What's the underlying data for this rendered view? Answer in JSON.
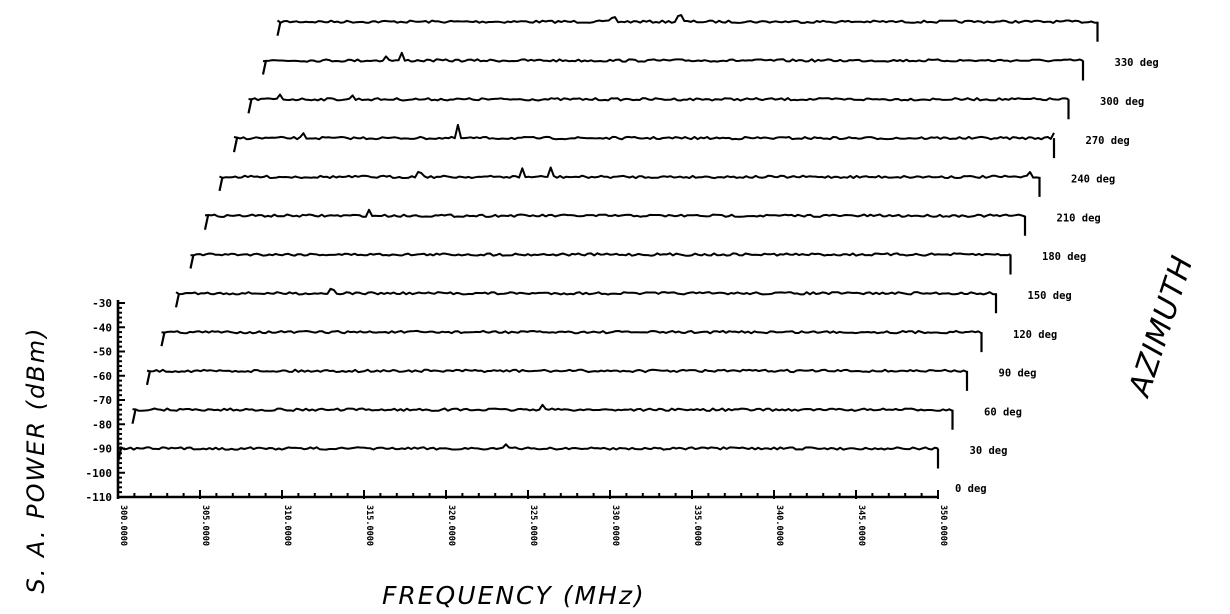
{
  "chart_data": {
    "type": "line",
    "style": "waterfall-3d",
    "xlabel": "FREQUENCY (MHz)",
    "ylabel": "S. A. POWER (dBm)",
    "zlabel": "AZIMUTH",
    "xlim": [
      300,
      350
    ],
    "ylim": [
      -110,
      -30
    ],
    "xticks": [
      "300.0000",
      "305.0000",
      "310.0000",
      "315.0000",
      "320.0000",
      "325.0000",
      "330.0000",
      "335.0000",
      "340.0000",
      "345.0000",
      "350.0000"
    ],
    "yticks": [
      "-30",
      "-40",
      "-50",
      "-60",
      "-70",
      "-80",
      "-90",
      "-100",
      "-110"
    ],
    "noise_floor_dbm": -90,
    "grid": false,
    "series": [
      {
        "name": "0 deg",
        "peaks": [
          [
            323.6,
            4
          ]
        ]
      },
      {
        "name": "30 deg",
        "peaks": [
          [
            325.0,
            6
          ]
        ]
      },
      {
        "name": "60 deg",
        "peaks": []
      },
      {
        "name": "90 deg",
        "peaks": []
      },
      {
        "name": "120 deg",
        "peaks": [
          [
            309.5,
            4
          ]
        ]
      },
      {
        "name": "150 deg",
        "peaks": []
      },
      {
        "name": "180 deg",
        "peaks": [
          [
            310.0,
            5
          ]
        ]
      },
      {
        "name": "210 deg",
        "peaks": [
          [
            312.2,
            5
          ],
          [
            318.5,
            8
          ],
          [
            320.2,
            10
          ],
          [
            349.4,
            6
          ]
        ]
      },
      {
        "name": "240 deg",
        "peaks": [
          [
            304.2,
            4
          ],
          [
            313.6,
            12
          ],
          [
            350.0,
            5
          ]
        ]
      },
      {
        "name": "270 deg",
        "peaks": [
          [
            301.9,
            5
          ],
          [
            306.3,
            4
          ]
        ]
      },
      {
        "name": "300 deg",
        "peaks": [
          [
            307.5,
            5
          ],
          [
            308.5,
            7
          ]
        ]
      },
      {
        "name": "330 deg",
        "peaks": [
          [
            320.5,
            4
          ],
          [
            324.5,
            6
          ]
        ]
      }
    ]
  }
}
